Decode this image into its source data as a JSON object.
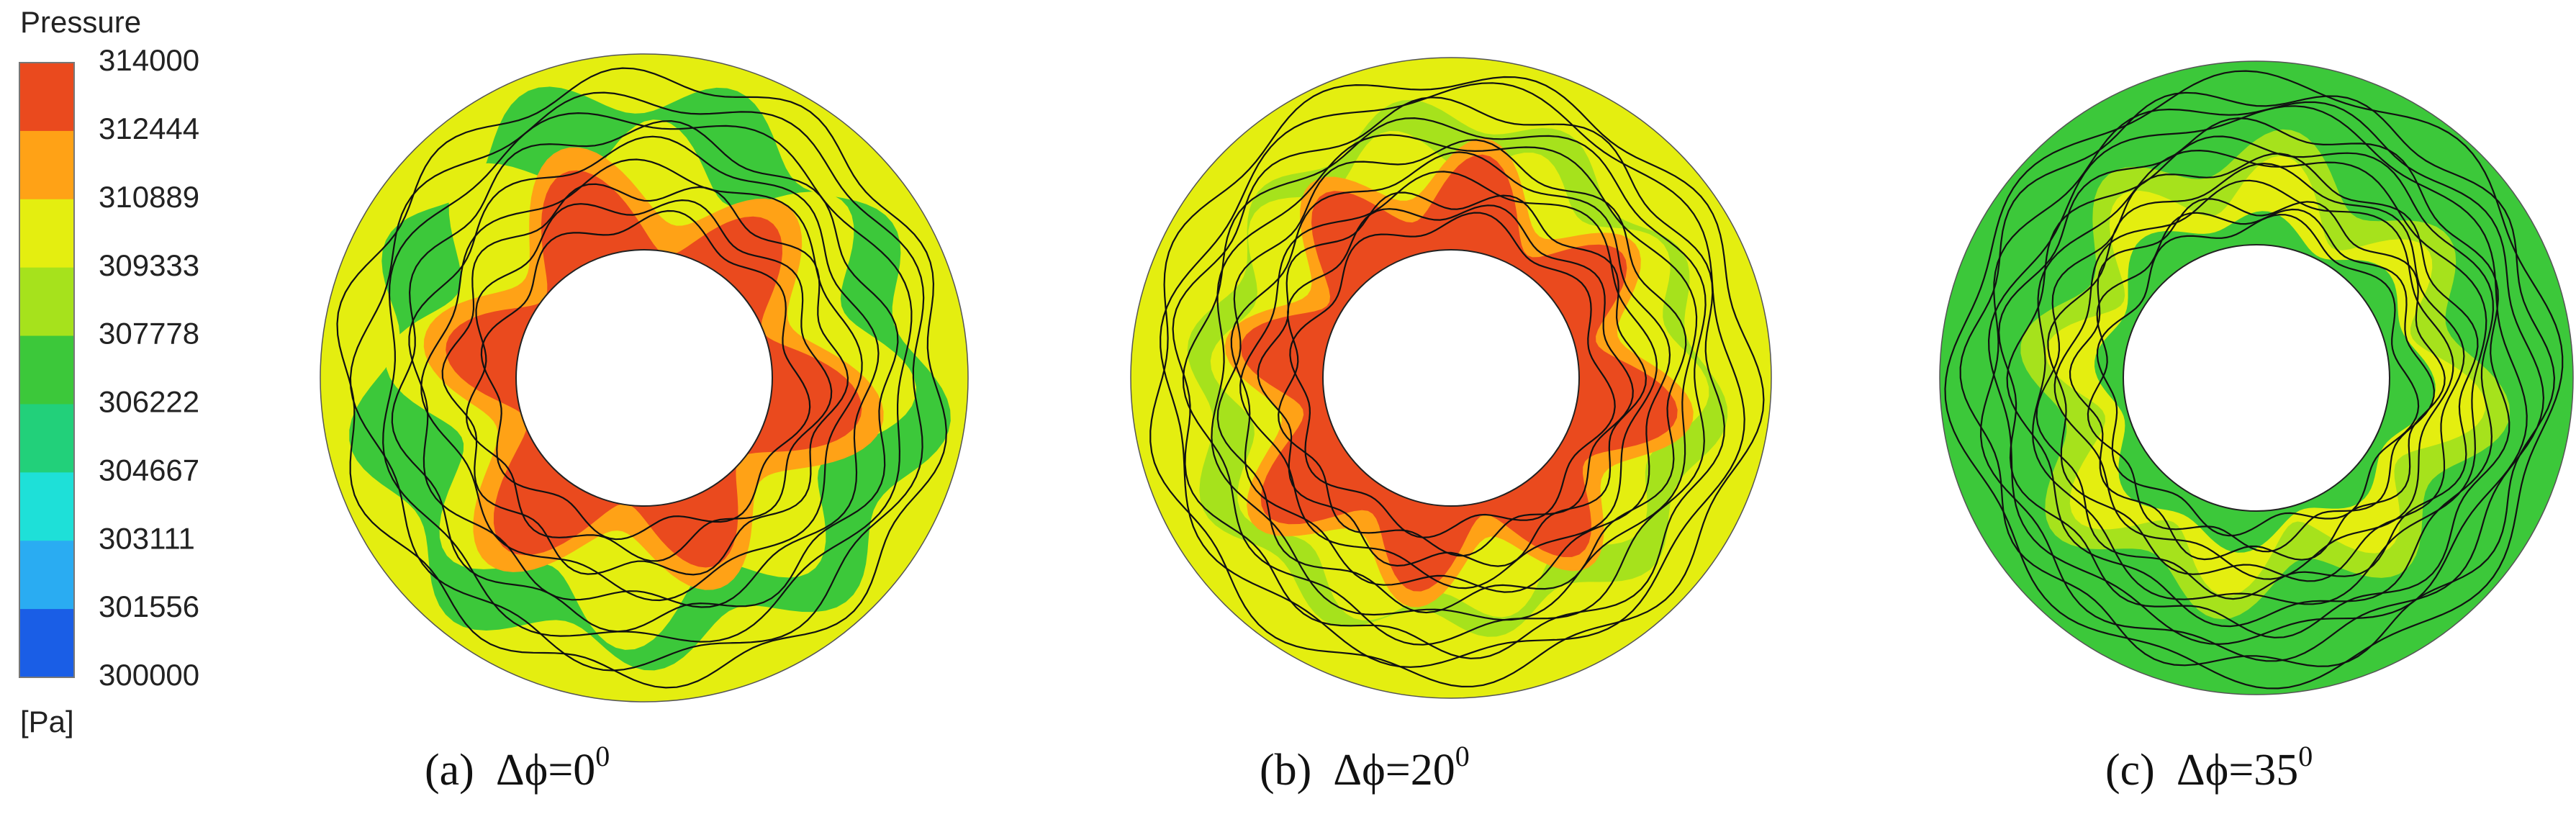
{
  "legend": {
    "title": "Pressure",
    "levels": [
      314000,
      312444,
      310889,
      309333,
      307778,
      306222,
      304667,
      303111,
      301556,
      300000
    ],
    "colors": [
      "#ea4a1e",
      "#ffa216",
      "#e4ee10",
      "#a6e21c",
      "#3cc83a",
      "#22d07a",
      "#1ee0d8",
      "#2aacf2",
      "#1a5ee6"
    ],
    "unit": "[Pa]"
  },
  "panels": [
    {
      "label": "(a)",
      "expression": "Δϕ=0",
      "superscript": "0"
    },
    {
      "label": "(b)",
      "expression": "Δϕ=20",
      "superscript": "0"
    },
    {
      "label": "(c)",
      "expression": "Δϕ=35",
      "superscript": "0"
    }
  ]
}
